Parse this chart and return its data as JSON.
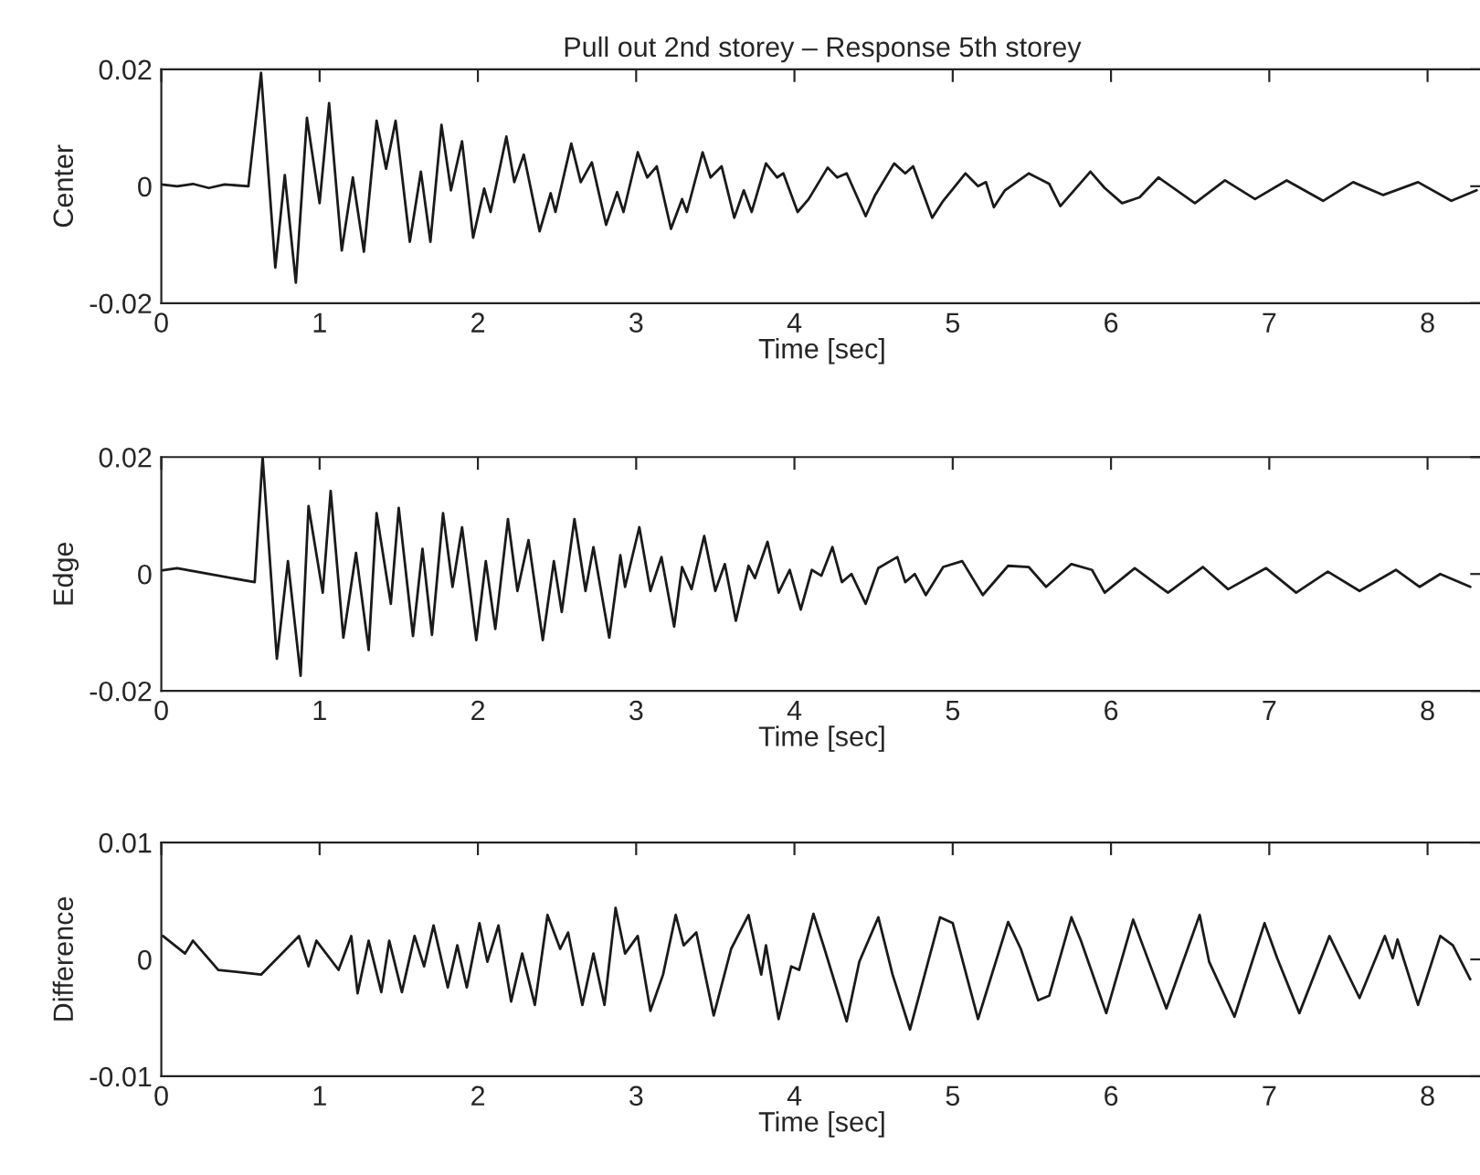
{
  "chart_data": [
    {
      "type": "line",
      "title": "Pull out 2nd storey – Response 5th storey",
      "xlabel": "Time [sec]",
      "ylabel": "Center",
      "xlim": [
        0,
        8.35
      ],
      "xticks": [
        0,
        1,
        2,
        3,
        4,
        5,
        6,
        7,
        8
      ],
      "ylim": [
        -0.02,
        0.02
      ],
      "yticks": [
        -0.02,
        0,
        0.02
      ],
      "grid": false,
      "legend": false,
      "series": [
        {
          "color": "#1a1a1a",
          "x": [
            0,
            0.1,
            0.2,
            0.3,
            0.4,
            0.55,
            0.63,
            0.72,
            0.78,
            0.85,
            0.92,
            1.0,
            1.06,
            1.14,
            1.21,
            1.28,
            1.36,
            1.42,
            1.48,
            1.57,
            1.64,
            1.7,
            1.77,
            1.83,
            1.9,
            1.97,
            2.04,
            2.08,
            2.18,
            2.23,
            2.29,
            2.39,
            2.46,
            2.49,
            2.59,
            2.65,
            2.72,
            2.81,
            2.88,
            2.92,
            3.01,
            3.07,
            3.13,
            3.22,
            3.29,
            3.32,
            3.42,
            3.47,
            3.54,
            3.62,
            3.68,
            3.73,
            3.82,
            3.89,
            3.93,
            4.02,
            4.09,
            4.21,
            4.27,
            4.33,
            4.45,
            4.51,
            4.63,
            4.7,
            4.75,
            4.87,
            4.94,
            5.08,
            5.16,
            5.21,
            5.26,
            5.33,
            5.48,
            5.61,
            5.68,
            5.87,
            5.96,
            6.07,
            6.18,
            6.3,
            6.53,
            6.72,
            6.91,
            7.11,
            7.34,
            7.53,
            7.72,
            7.94,
            8.15,
            8.31
          ],
          "values": [
            0.0003,
            0.0,
            0.0004,
            -0.0003,
            0.0003,
            0.0,
            0.0194,
            -0.0139,
            0.0019,
            -0.0165,
            0.0117,
            -0.0029,
            0.0142,
            -0.011,
            0.0015,
            -0.0112,
            0.0112,
            0.003,
            0.0112,
            -0.0095,
            0.0025,
            -0.0095,
            0.0105,
            -0.0007,
            0.0077,
            -0.0088,
            -0.0004,
            -0.0044,
            0.0085,
            0.0007,
            0.0054,
            -0.0077,
            -0.0012,
            -0.0044,
            0.0073,
            0.0007,
            0.0041,
            -0.0066,
            -0.001,
            -0.0044,
            0.0058,
            0.0015,
            0.0034,
            -0.0073,
            -0.0022,
            -0.0044,
            0.0058,
            0.0015,
            0.0034,
            -0.0054,
            -0.0007,
            -0.0044,
            0.0039,
            0.0015,
            0.0022,
            -0.0044,
            -0.0022,
            0.0032,
            0.0015,
            0.0022,
            -0.0051,
            -0.0015,
            0.0039,
            0.0022,
            0.0034,
            -0.0054,
            -0.0025,
            0.0022,
            0.0,
            0.0007,
            -0.0036,
            -0.0007,
            0.0022,
            0.0004,
            -0.0034,
            0.0025,
            -0.0003,
            -0.0029,
            -0.0019,
            0.0015,
            -0.0029,
            0.001,
            -0.0022,
            0.001,
            -0.0025,
            0.0007,
            -0.0015,
            0.0007,
            -0.0025,
            -0.0007
          ]
        }
      ]
    },
    {
      "type": "line",
      "xlabel": "Time [sec]",
      "ylabel": "Edge",
      "xlim": [
        0,
        8.35
      ],
      "xticks": [
        0,
        1,
        2,
        3,
        4,
        5,
        6,
        7,
        8
      ],
      "ylim": [
        -0.02,
        0.02
      ],
      "yticks": [
        -0.02,
        0,
        0.02
      ],
      "grid": false,
      "legend": false,
      "series": [
        {
          "color": "#1a1a1a",
          "x": [
            0,
            0.1,
            0.3,
            0.59,
            0.64,
            0.73,
            0.8,
            0.88,
            0.93,
            1.02,
            1.07,
            1.15,
            1.23,
            1.31,
            1.36,
            1.45,
            1.5,
            1.59,
            1.65,
            1.71,
            1.78,
            1.84,
            1.9,
            1.99,
            2.05,
            2.11,
            2.19,
            2.25,
            2.32,
            2.41,
            2.48,
            2.53,
            2.61,
            2.68,
            2.73,
            2.83,
            2.9,
            2.93,
            3.02,
            3.09,
            3.16,
            3.24,
            3.29,
            3.35,
            3.43,
            3.5,
            3.56,
            3.63,
            3.71,
            3.75,
            3.83,
            3.9,
            3.97,
            4.04,
            4.11,
            4.17,
            4.24,
            4.3,
            4.36,
            4.45,
            4.53,
            4.65,
            4.7,
            4.76,
            4.83,
            4.94,
            5.06,
            5.19,
            5.35,
            5.48,
            5.59,
            5.75,
            5.88,
            5.96,
            6.15,
            6.36,
            6.58,
            6.74,
            6.98,
            7.17,
            7.37,
            7.57,
            7.8,
            7.95,
            8.08,
            8.27
          ],
          "values": [
            0.0006,
            0.001,
            0.0,
            -0.0014,
            0.02,
            -0.0145,
            0.0022,
            -0.0174,
            0.0116,
            -0.0032,
            0.0142,
            -0.0109,
            0.0036,
            -0.013,
            0.0104,
            -0.0051,
            0.0113,
            -0.0106,
            0.0043,
            -0.0104,
            0.0104,
            -0.0022,
            0.008,
            -0.0113,
            0.0022,
            -0.0094,
            0.0094,
            -0.0029,
            0.0058,
            -0.0113,
            0.0022,
            -0.0065,
            0.0094,
            -0.0029,
            0.0046,
            -0.0109,
            0.0032,
            -0.0022,
            0.008,
            -0.0029,
            0.0029,
            -0.009,
            0.0012,
            -0.0026,
            0.0065,
            -0.0029,
            0.0017,
            -0.008,
            0.0014,
            -0.0007,
            0.0055,
            -0.0032,
            0.0007,
            -0.0061,
            0.0007,
            -0.0003,
            0.0046,
            -0.0014,
            0.0,
            -0.0051,
            0.001,
            0.0029,
            -0.0014,
            0.0,
            -0.0036,
            0.0012,
            0.0022,
            -0.0036,
            0.0014,
            0.0012,
            -0.0022,
            0.0017,
            0.0007,
            -0.0032,
            0.001,
            -0.0032,
            0.0012,
            -0.0026,
            0.001,
            -0.0032,
            0.0004,
            -0.0029,
            0.0007,
            -0.0022,
            0.0,
            -0.0022
          ]
        }
      ]
    },
    {
      "type": "line",
      "xlabel": "Time [sec]",
      "ylabel": "Difference",
      "xlim": [
        0,
        8.35
      ],
      "xticks": [
        0,
        1,
        2,
        3,
        4,
        5,
        6,
        7,
        8
      ],
      "ylim": [
        -0.01,
        0.01
      ],
      "yticks": [
        -0.01,
        0,
        0.01
      ],
      "grid": false,
      "legend": false,
      "series": [
        {
          "color": "#1a1a1a",
          "x": [
            0.01,
            0.15,
            0.2,
            0.36,
            0.63,
            0.87,
            0.93,
            0.98,
            1.12,
            1.2,
            1.24,
            1.31,
            1.39,
            1.44,
            1.52,
            1.6,
            1.66,
            1.72,
            1.81,
            1.87,
            1.93,
            2.01,
            2.06,
            2.13,
            2.21,
            2.28,
            2.36,
            2.44,
            2.52,
            2.57,
            2.66,
            2.73,
            2.8,
            2.87,
            2.93,
            3.01,
            3.09,
            3.17,
            3.25,
            3.3,
            3.38,
            3.49,
            3.6,
            3.71,
            3.79,
            3.82,
            3.9,
            3.98,
            4.03,
            4.12,
            4.19,
            4.33,
            4.41,
            4.53,
            4.62,
            4.73,
            4.92,
            5.0,
            5.16,
            5.35,
            5.43,
            5.54,
            5.61,
            5.75,
            5.81,
            5.97,
            6.14,
            6.22,
            6.35,
            6.56,
            6.62,
            6.78,
            6.97,
            7.05,
            7.19,
            7.38,
            7.57,
            7.73,
            7.78,
            7.81,
            7.94,
            8.08,
            8.16,
            8.27
          ],
          "values": [
            0.002,
            0.0005,
            0.0016,
            -0.0009,
            -0.0013,
            0.002,
            -0.0006,
            0.0016,
            -0.0009,
            0.002,
            -0.0029,
            0.0016,
            -0.0028,
            0.0016,
            -0.0028,
            0.002,
            -0.0006,
            0.0029,
            -0.0024,
            0.0012,
            -0.0024,
            0.0031,
            -0.0002,
            0.0029,
            -0.0036,
            0.0005,
            -0.0039,
            0.0038,
            0.0009,
            0.0023,
            -0.0039,
            0.0005,
            -0.0039,
            0.0044,
            0.0005,
            0.002,
            -0.0044,
            -0.0013,
            0.0038,
            0.0012,
            0.0023,
            -0.0048,
            0.0009,
            0.0038,
            -0.0013,
            0.0012,
            -0.0051,
            -0.0006,
            -0.0009,
            0.0039,
            0.0009,
            -0.0053,
            -0.0002,
            0.0036,
            -0.0013,
            -0.006,
            0.0036,
            0.0031,
            -0.0051,
            0.0032,
            0.0009,
            -0.0035,
            -0.0031,
            0.0036,
            0.0016,
            -0.0046,
            0.0034,
            0.0005,
            -0.0042,
            0.0038,
            -0.0002,
            -0.0049,
            0.0031,
            0.0001,
            -0.0046,
            0.002,
            -0.0033,
            0.002,
            0.0001,
            0.0017,
            -0.0039,
            0.002,
            0.0012,
            -0.0017
          ]
        }
      ]
    }
  ]
}
